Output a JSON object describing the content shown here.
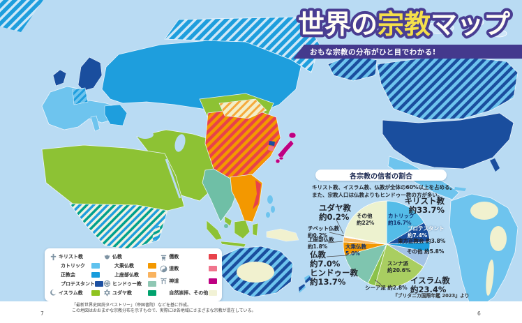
{
  "header": {
    "title_parts": [
      "世界の",
      "宗教",
      "マップ"
    ],
    "title_colors": {
      "base": "#FFFDF4",
      "accent": "#F4DF4B",
      "outline": "#493D92"
    },
    "subtitle": "おもな宗教の分布がひと目でわかる!"
  },
  "legend": {
    "columns": [
      {
        "items": [
          {
            "icon": "cross-icon",
            "label": "キリスト教"
          },
          {
            "label": "カトリック",
            "color": "#5FC2EE",
            "indent": true
          },
          {
            "label": "正教会",
            "color": "#189CDC",
            "indent": true
          },
          {
            "label": "プロテスタント",
            "color": "#1C4FA1",
            "indent": true
          },
          {
            "icon": "crescent-icon",
            "label": "イスラム教",
            "color": "#8FC31F"
          }
        ]
      },
      {
        "items": [
          {
            "icon": "lotus-icon",
            "label": "仏教"
          },
          {
            "label": "大乗仏教",
            "color": "#F39800",
            "indent": true
          },
          {
            "label": "上座部仏教",
            "color": "#F9B35F",
            "indent": true
          },
          {
            "icon": "dharma-wheel-icon",
            "label": "ヒンドゥー教",
            "color": "#8FC7B3"
          },
          {
            "icon": "star-of-david-icon",
            "label": "ユダヤ教",
            "color": "#00A26D"
          }
        ]
      },
      {
        "items": [
          {
            "icon": "censer-icon",
            "label": "儒教",
            "color": "#E8424A"
          },
          {
            "icon": "yinyang-icon",
            "label": "道教",
            "color": "#F0758D"
          },
          {
            "icon": "torii-icon",
            "label": "神道",
            "color": "#BE0082"
          },
          {
            "label": "自然崇拝、その他",
            "color": "#F2F2D5"
          }
        ]
      }
    ]
  },
  "chart_panel": {
    "title": "各宗教の信者の割合",
    "description_lines": [
      "キリスト教、イスラム教、仏教が全体の60%以上を占める。",
      "また、宗教人口は仏教よりもヒンドゥー教の方が多い。"
    ],
    "source": "『ブリタニカ国際年鑑 2023』より"
  },
  "chart_data": {
    "type": "pie",
    "title": "各宗教の信者の割合",
    "unit": "percent",
    "slices": [
      {
        "name": "カトリック",
        "group": "キリスト教",
        "value": 16.7,
        "color": "#54BCE8"
      },
      {
        "name": "プロテスタント",
        "group": "キリスト教",
        "value": 7.4,
        "color": "#1A4E9E"
      },
      {
        "name": "東方正教会",
        "group": "キリスト教",
        "value": 3.8,
        "color": "#1E9EDD"
      },
      {
        "name": "その他（キリスト教）",
        "group": "キリスト教",
        "value": 5.8,
        "color": "#A3C3E6"
      },
      {
        "name": "スンナ派",
        "group": "イスラム教",
        "value": 20.6,
        "color": "#A9CE61"
      },
      {
        "name": "シーア派",
        "group": "イスラム教",
        "value": 2.8,
        "color": "#8BC24A"
      },
      {
        "name": "ヒンドゥー教",
        "value": 13.7,
        "color": "#7FC5AF"
      },
      {
        "name": "大乗仏教",
        "group": "仏教",
        "value": 5.0,
        "color": "#F39800"
      },
      {
        "name": "上座部仏教",
        "group": "仏教",
        "value": 1.8,
        "color": "#F8B862"
      },
      {
        "name": "チベット仏教",
        "group": "仏教",
        "value": 0.2,
        "color": "#B5484D"
      },
      {
        "name": "ユダヤ教",
        "value": 0.2,
        "color": "#00A26D"
      },
      {
        "name": "その他",
        "value": 22.0,
        "color": "#EDF2CF"
      }
    ],
    "group_totals": {
      "キリスト教": 33.7,
      "イスラム教": 23.4,
      "仏教": 7.0
    },
    "labels": [
      {
        "id": "christianity",
        "lines": [
          "キリスト教",
          "約33.7%"
        ]
      },
      {
        "id": "catholic",
        "lines": [
          "カトリック",
          "約16.7%"
        ]
      },
      {
        "id": "protestant",
        "lines": [
          "プロテスタント",
          "約7.4%"
        ]
      },
      {
        "id": "orthodox",
        "lines": [
          "東方正教会 約3.8%"
        ]
      },
      {
        "id": "other-christian",
        "lines": [
          "その他 約5.8%"
        ]
      },
      {
        "id": "sunni",
        "lines": [
          "スンナ派",
          "約20.6%"
        ]
      },
      {
        "id": "islam",
        "lines": [
          "イスラム教",
          "約23.4%"
        ]
      },
      {
        "id": "shia",
        "lines": [
          "シーア派 約2.8%"
        ]
      },
      {
        "id": "hindu",
        "lines": [
          "ヒンドゥー教",
          "約13.7%"
        ]
      },
      {
        "id": "buddhism",
        "lines": [
          "仏教",
          "約7.0%"
        ]
      },
      {
        "id": "mahayana",
        "lines": [
          "大乗仏教",
          "5.0%"
        ]
      },
      {
        "id": "theravada",
        "lines": [
          "上座部仏教",
          "約1.8%"
        ]
      },
      {
        "id": "tibetan",
        "lines": [
          "チベット仏教",
          "約0.2%"
        ]
      },
      {
        "id": "judaism",
        "lines": [
          "ユダヤ教",
          "約0.2%"
        ]
      },
      {
        "id": "other",
        "lines": [
          "その他",
          "約22%"
        ]
      }
    ]
  },
  "footer": {
    "caption_lines": [
      "「最新世界史図説タペストリー」（帝国書院）などを基に作成。",
      "この地図はおおまかな宗教分布を示すもので、実際には各地域にさまざまな宗教が混在している。"
    ],
    "page_number_left": "7",
    "page_number_right": "6"
  }
}
